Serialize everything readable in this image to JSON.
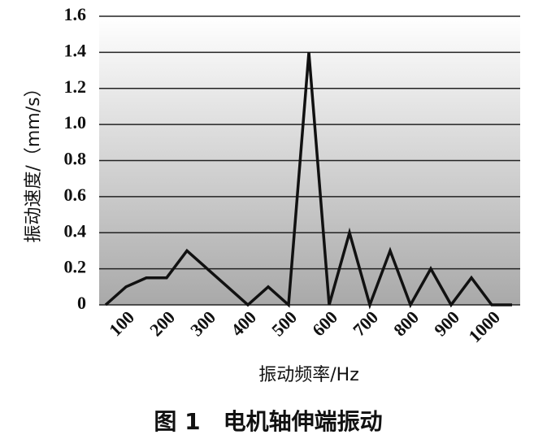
{
  "chart_data": {
    "type": "line",
    "caption": "图 1　电机轴伸端振动",
    "xlabel": "振动频率/Hz",
    "ylabel": "振动速度/（mm/s）",
    "categories": [
      null,
      "100",
      null,
      "200",
      null,
      "300",
      null,
      "400",
      null,
      "500",
      null,
      "600",
      null,
      "700",
      null,
      "800",
      null,
      "900",
      null,
      "1000",
      null
    ],
    "series": [
      {
        "color": "#111111",
        "values": [
          0,
          0.1,
          0.15,
          0.15,
          0.3,
          0.2,
          0.1,
          0,
          0.1,
          0,
          1.4,
          0,
          0.4,
          0,
          0.3,
          0,
          0.2,
          0,
          0.15,
          0,
          0
        ]
      }
    ],
    "ylim": [
      0,
      1.6
    ],
    "yticks": [
      0,
      0.2,
      0.4,
      0.6,
      0.8,
      {
        "value": 1,
        "label": "1.0"
      },
      1.2,
      1.4,
      1.6
    ],
    "grid": true
  }
}
